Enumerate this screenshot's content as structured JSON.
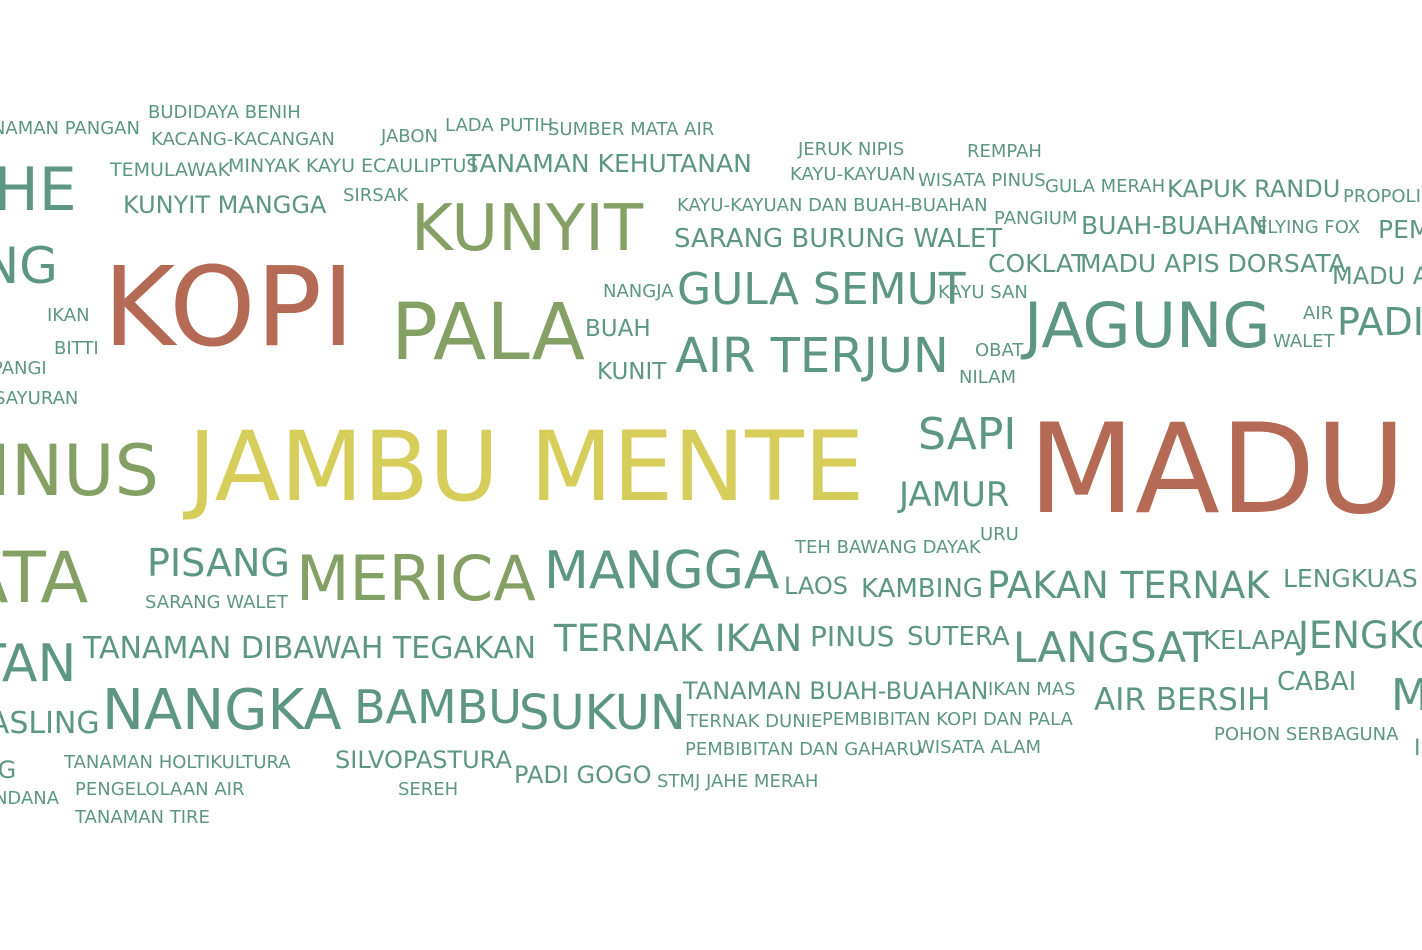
{
  "colors": {
    "teal": "#5e9684",
    "olive": "#84a065",
    "rust": "#b56a55",
    "gold": "#d7cd5b",
    "background": "#ffffff"
  },
  "words": {
    "w001": "TANAMAN PANGAN",
    "w002": "BUDIDAYA BENIH",
    "w003": "KACANG-KACANGAN",
    "w004": "JABON",
    "w005": "LADA PUTIH",
    "w006": "SUMBER MATA AIR",
    "w007": "JERUK NIPIS",
    "w008": "REMPAH",
    "w009": "JAHE",
    "w010": "TEMULAWAK",
    "w011": "MINYAK KAYU ECAULIPTUS",
    "w012": "TANAMAN KEHUTANAN",
    "w013": "KAYU-KAYUAN",
    "w014": "WISATA PINUS",
    "w015": "GULA MERAH",
    "w016": "KAPUK RANDU",
    "w017": "PROPOLIS",
    "w018": "KUNYIT MANGGA",
    "w019": "SIRSAK",
    "w020": "KAYU-KAYUAN DAN BUAH-BUAHAN",
    "w021": "PANGIUM",
    "w022": "BUAH-BUAHAN",
    "w023": "FLYING FOX",
    "w024": "PEMBIBITAN",
    "w025": "KUNYIT",
    "w026": "SARANG BURUNG WALET",
    "w027": "PISANG",
    "w028": "KOPI",
    "w029": "COKLAT",
    "w030": "MADU APIS DORSATA",
    "w031": "MADU APIS",
    "w032": "NANGJA",
    "w033": "GULA SEMUT",
    "w034": "KAYU SAN",
    "w035": "IKAN",
    "w036": "PALA",
    "w037": "JAGUNG",
    "w038": "AIR",
    "w039": "PADI",
    "w040": "BUAH",
    "w041": "WALET",
    "w042": "BITTI",
    "w043": "OBAT",
    "w044": "AIR TERJUN",
    "w045": "PANGI",
    "w046": "KUNIT",
    "w047": "NILAM",
    "w048": "SAYURAN",
    "w049": "SAPI",
    "w050": "PINUS",
    "w051": "JAMBU MENTE",
    "w052": "MADU",
    "w053": "JAMUR",
    "w054": "URU",
    "w055": "TEH BAWANG DAYAK",
    "w056": "WISATA",
    "w057": "PISANG",
    "w058": "MERICA",
    "w059": "MANGGA",
    "w060": "SARANG WALET",
    "w061": "LAOS",
    "w062": "KAMBING",
    "w063": "PAKAN TERNAK",
    "w064": "LENGKUAS",
    "w065": "HUTAN",
    "w066": "TANAMAN DIBAWAH TEGAKAN",
    "w067": "TERNAK IKAN",
    "w068": "PINUS",
    "w069": "SUTERA",
    "w070": "LANGSAT",
    "w071": "KELAPA",
    "w072": "JENGKOL",
    "w073": "TANAMAN BUAH-BUAHAN",
    "w074": "IKAN MAS",
    "w075": "CABAI",
    "w076": "MANGGIS",
    "w077": "NANGKA",
    "w078": "BAMBU",
    "w079": "SUKUN",
    "w080": "AIR BERSIH",
    "w081": "TERNAK DUNIE",
    "w082": "PEMBIBITAN KOPI DAN PALA",
    "w083": "POHON SERBAGUNA",
    "w084": "KEPASLING",
    "w085": "PEMBIBITAN DAN GAHARU",
    "w086": "WISATA ALAM",
    "w087": "TANAMAN HOLTIKULTURA",
    "w088": "SILVOPASTURA",
    "w089": "JENGKENG",
    "w090": "PADI GOGO",
    "w091": "STMJ JAHE MERAH",
    "w092": "CENDANA",
    "w093": "PENGELOLAAN AIR",
    "w094": "SEREH",
    "w095": "TANAMAN TIRE",
    "w096": "I"
  }
}
